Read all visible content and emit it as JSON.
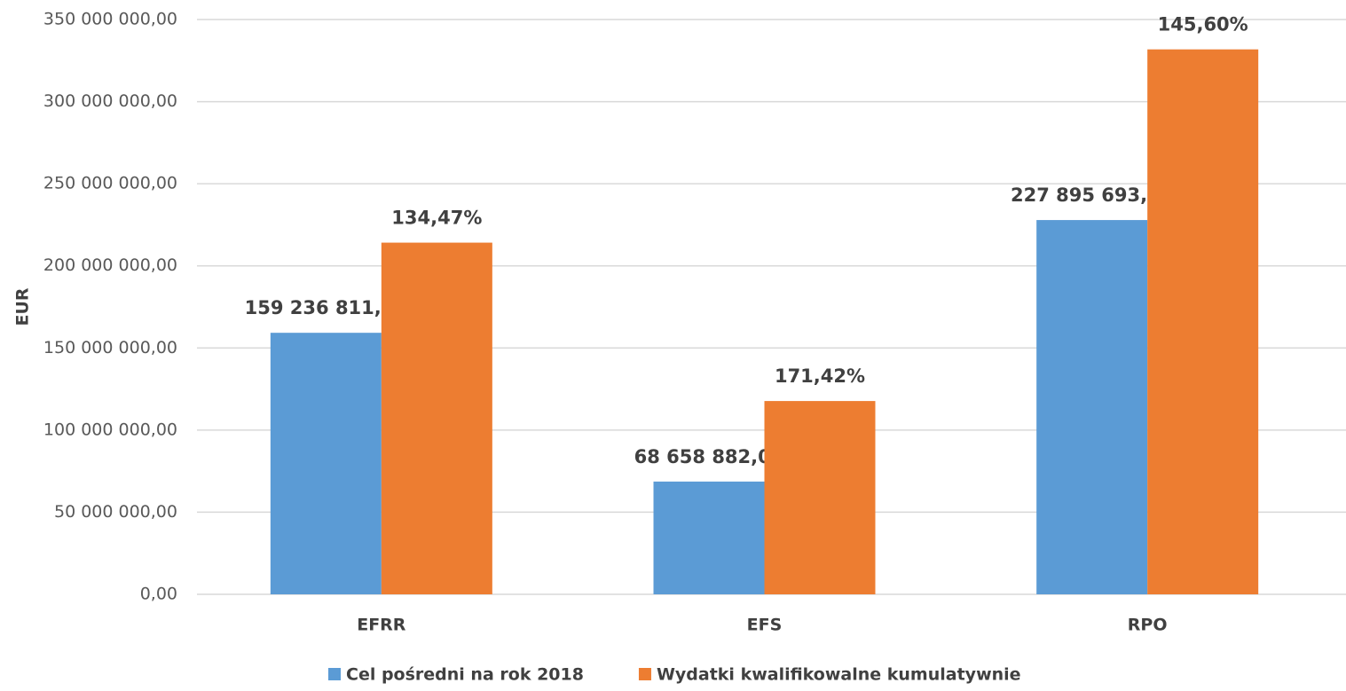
{
  "chart_data": {
    "type": "bar",
    "y_label": "EUR",
    "categories": [
      "EFRR",
      "EFS",
      "RPO"
    ],
    "series": [
      {
        "name": "Cel pośredni na rok 2018",
        "color": "#5b9bd5",
        "values": [
          159236811,
          68658882,
          227895693
        ],
        "value_labels": [
          "159 236 811,00",
          "68 658 882,00",
          "227 895 693,00"
        ]
      },
      {
        "name": "Wydatki kwalifikowalne kumulatywnie",
        "color": "#ed7d31",
        "values": [
          214127000,
          117695000,
          331816000
        ],
        "percent_labels": [
          "134,47%",
          "171,42%",
          "145,60%"
        ]
      }
    ],
    "ylim": [
      0,
      350000000
    ],
    "yticks": [
      {
        "value": 0,
        "label": "0,00"
      },
      {
        "value": 50000000,
        "label": "50 000 000,00"
      },
      {
        "value": 100000000,
        "label": "100 000 000,00"
      },
      {
        "value": 150000000,
        "label": "150 000 000,00"
      },
      {
        "value": 200000000,
        "label": "200 000 000,00"
      },
      {
        "value": 250000000,
        "label": "250 000 000,00"
      },
      {
        "value": 300000000,
        "label": "300 000 000,00"
      },
      {
        "value": 350000000,
        "label": "350 000 000,00"
      }
    ],
    "grid": true,
    "legend": "bottom"
  }
}
